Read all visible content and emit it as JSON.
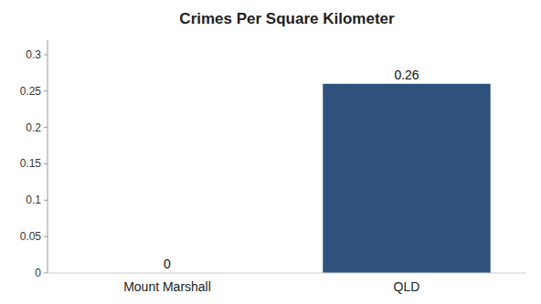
{
  "chart_data": {
    "type": "bar",
    "title": "Crimes Per Square Kilometer",
    "categories": [
      "Mount Marshall",
      "QLD"
    ],
    "values": [
      0,
      0.26
    ],
    "colors": [
      "#3a5f8a",
      "#2e527c"
    ],
    "ylim": [
      0,
      0.32
    ],
    "yticks": [
      0,
      0.05,
      0.1,
      0.15,
      0.2,
      0.25,
      0.3
    ],
    "grid": false,
    "data_labels": true
  }
}
